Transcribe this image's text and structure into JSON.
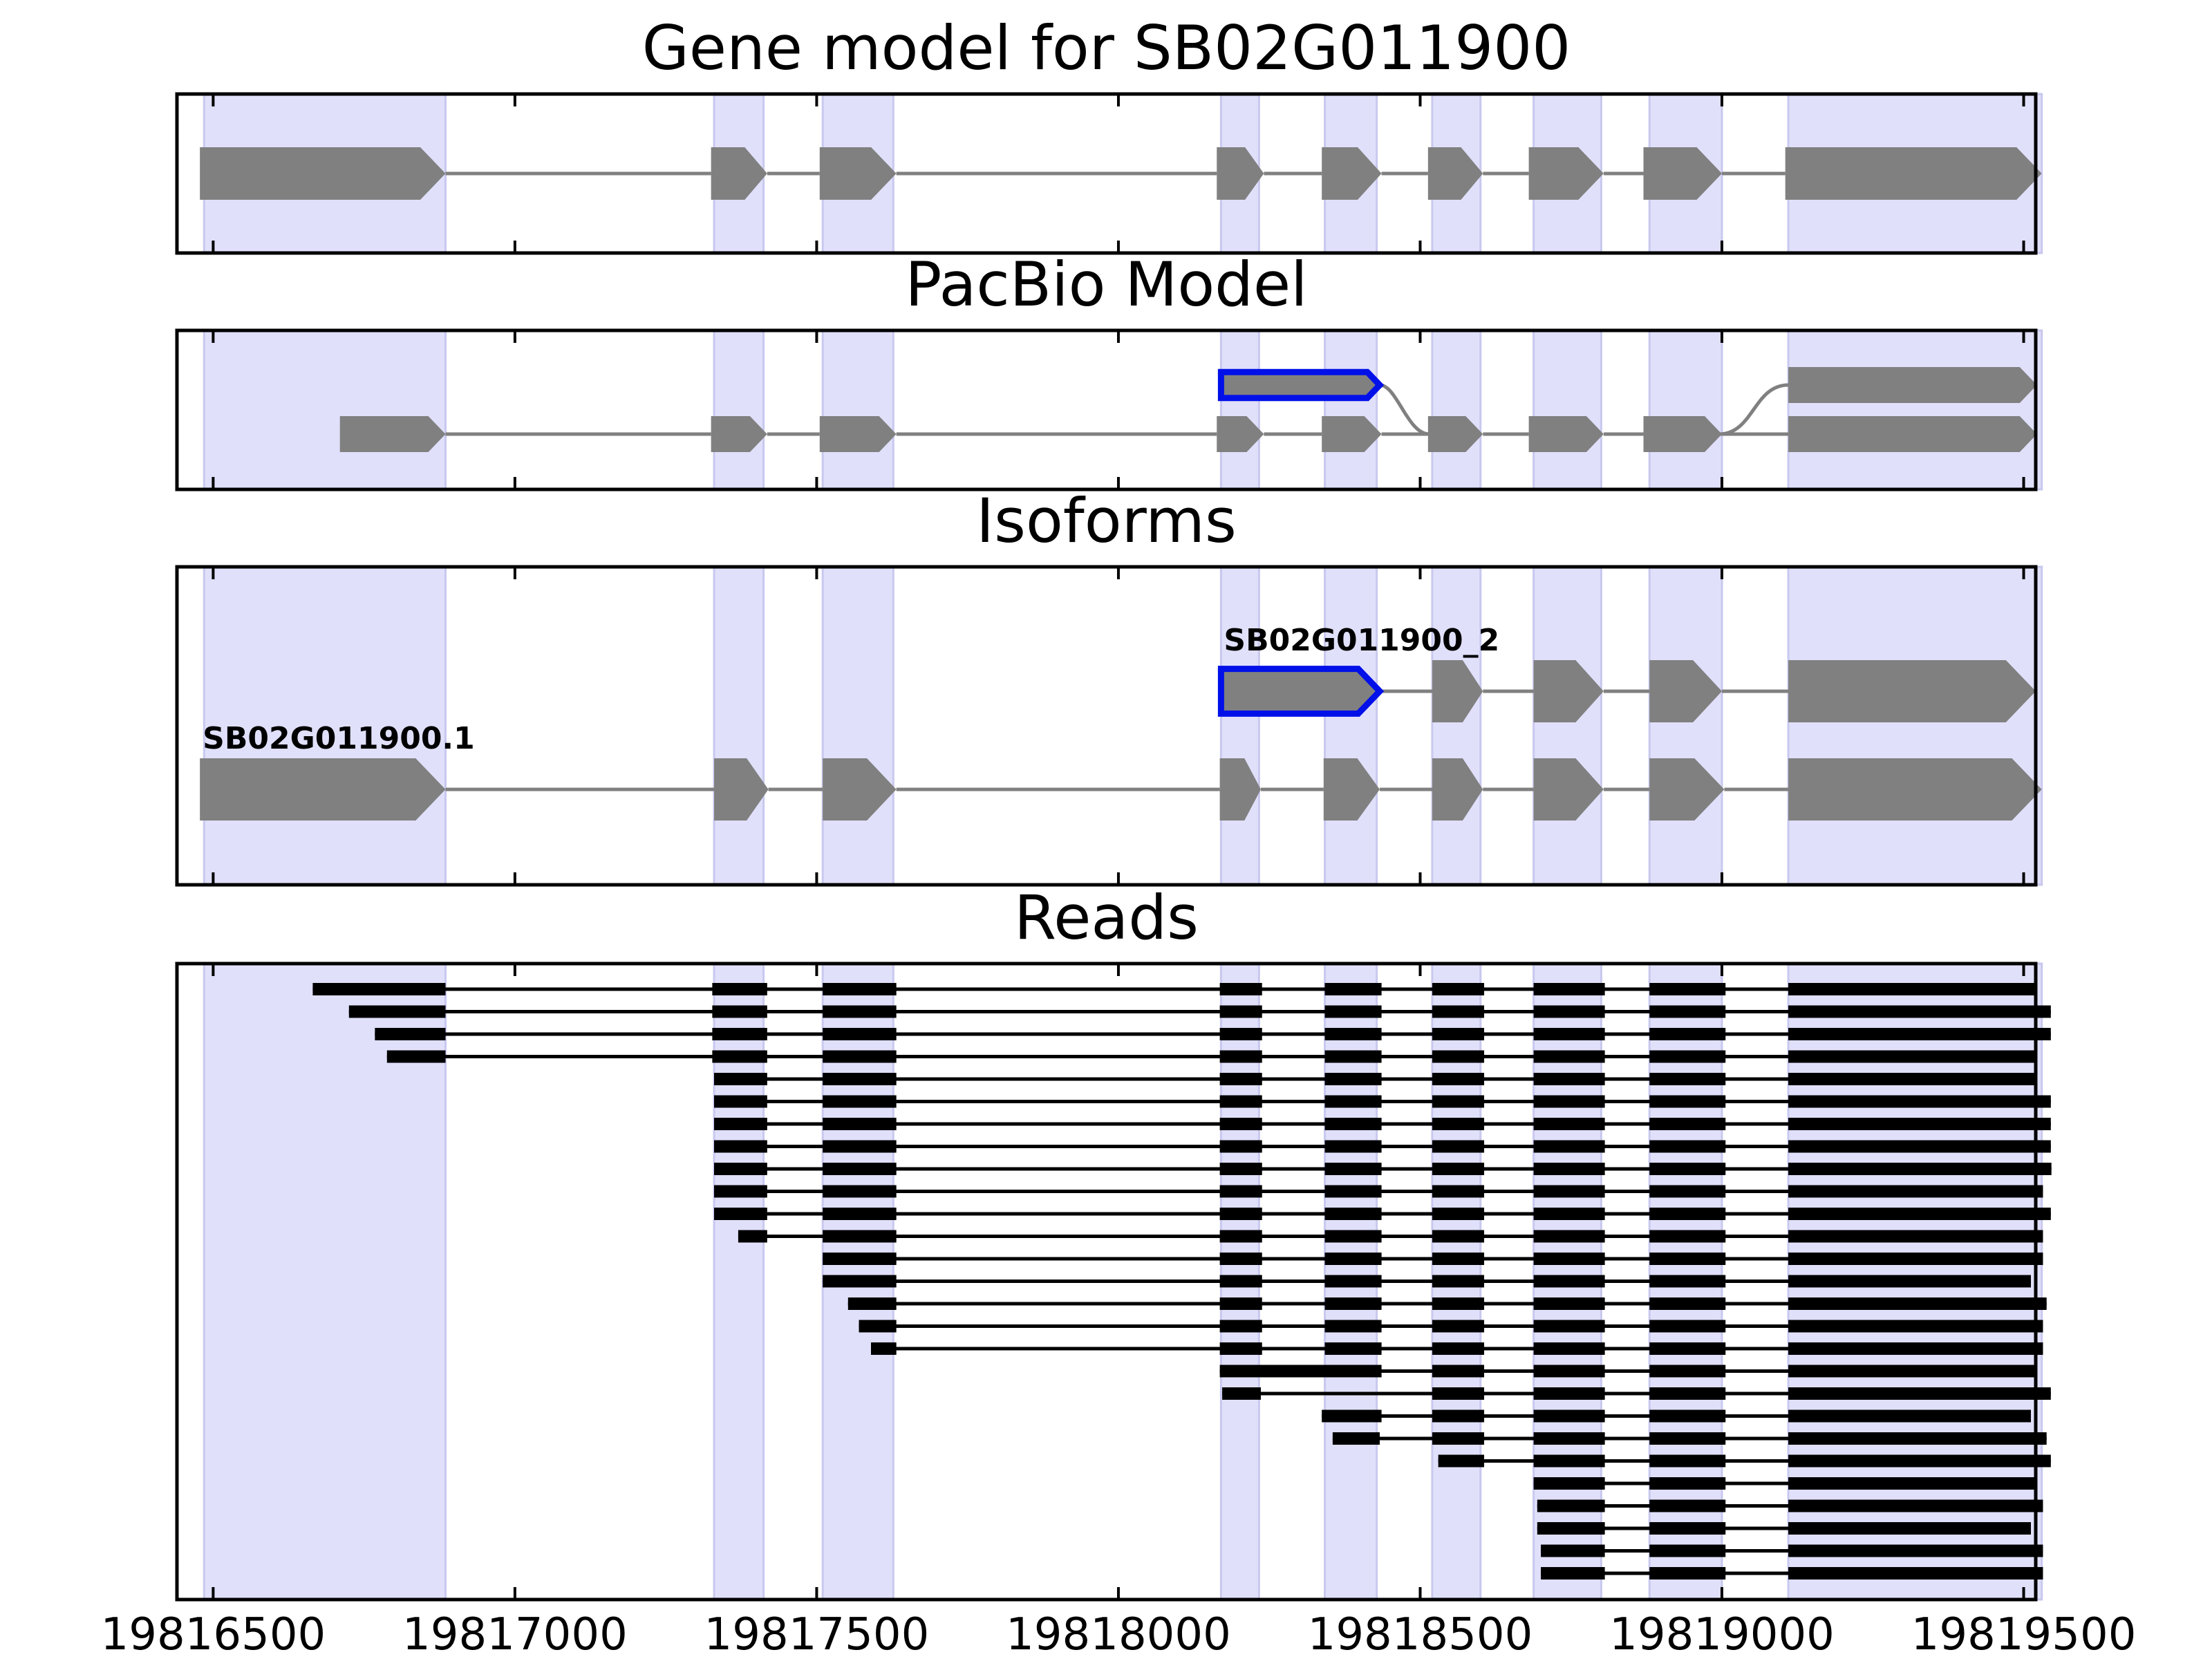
{
  "chart_data": {
    "type": "gene-structure",
    "x_range": [
      19816440,
      19819520
    ],
    "x_ticks": [
      19816500,
      19817000,
      19817500,
      19818000,
      19818500,
      19819000,
      19819500
    ],
    "x_tick_labels": [
      "19816500",
      "19817000",
      "19817500",
      "19818000",
      "19818500",
      "19819000",
      "19819500"
    ],
    "exon_bands": [
      [
        19816485,
        19816885
      ],
      [
        19817330,
        19817412
      ],
      [
        19817510,
        19817627
      ],
      [
        19818170,
        19818233
      ],
      [
        19818342,
        19818428
      ],
      [
        19818520,
        19818600
      ],
      [
        19818688,
        19818800
      ],
      [
        19818880,
        19819000
      ],
      [
        19819110,
        19819530
      ]
    ],
    "panels": [
      {
        "title": "Gene model for SB02G011900",
        "tracks": [
          {
            "exons": [
              [
                19816478,
                19816885
              ],
              [
                19817325,
                19817418
              ],
              [
                19817505,
                19817632
              ],
              [
                19818163,
                19818241
              ],
              [
                19818337,
                19818436
              ],
              [
                19818513,
                19818604
              ],
              [
                19818680,
                19818804
              ],
              [
                19818870,
                19819000
              ],
              [
                19819105,
                19819530
              ]
            ]
          }
        ]
      },
      {
        "title": "PacBio Model",
        "tracks": [
          {
            "level": 0,
            "exons": [
              [
                19818170,
                19818433
              ],
              [
                19819110,
                19819522
              ]
            ],
            "highlight_exon": 0,
            "curve_after": 0,
            "curve_before": 1
          },
          {
            "level": 1,
            "exons": [
              [
                19816710,
                19816885
              ],
              [
                19817325,
                19817418
              ],
              [
                19817505,
                19817632
              ],
              [
                19818163,
                19818241
              ],
              [
                19818337,
                19818436
              ],
              [
                19818513,
                19818604
              ],
              [
                19818680,
                19818804
              ],
              [
                19818870,
                19819000
              ],
              [
                19819110,
                19819522
              ]
            ]
          }
        ]
      },
      {
        "title": "Isoforms",
        "tracks": [
          {
            "level": 0,
            "label": "SB02G011900_2",
            "exons": [
              [
                19818170,
                19818433
              ],
              [
                19818520,
                19818604
              ],
              [
                19818688,
                19818804
              ],
              [
                19818880,
                19819000
              ],
              [
                19819110,
                19819520
              ]
            ],
            "highlight_exon": 0
          },
          {
            "level": 1,
            "label": "SB02G011900.1",
            "exons": [
              [
                19816478,
                19816885
              ],
              [
                19817330,
                19817420
              ],
              [
                19817510,
                19817632
              ],
              [
                19818168,
                19818236
              ],
              [
                19818340,
                19818433
              ],
              [
                19818520,
                19818604
              ],
              [
                19818688,
                19818804
              ],
              [
                19818880,
                19819004
              ],
              [
                19819110,
                19819530
              ]
            ]
          }
        ]
      },
      {
        "title": "Reads",
        "reads": [
          [
            [
              19816665,
              19816885
            ],
            [
              19817327,
              19817418
            ],
            [
              19817510,
              19817632
            ],
            [
              19818168,
              19818238
            ],
            [
              19818342,
              19818436
            ],
            [
              19818520,
              19818606
            ],
            [
              19818688,
              19818806
            ],
            [
              19818880,
              19819006
            ],
            [
              19819110,
              19819520
            ]
          ],
          [
            [
              19816725,
              19816885
            ],
            [
              19817327,
              19817418
            ],
            [
              19817510,
              19817632
            ],
            [
              19818168,
              19818238
            ],
            [
              19818342,
              19818436
            ],
            [
              19818520,
              19818606
            ],
            [
              19818688,
              19818806
            ],
            [
              19818880,
              19819006
            ],
            [
              19819110,
              19819545
            ]
          ],
          [
            [
              19816768,
              19816885
            ],
            [
              19817327,
              19817418
            ],
            [
              19817510,
              19817632
            ],
            [
              19818168,
              19818238
            ],
            [
              19818342,
              19818436
            ],
            [
              19818520,
              19818606
            ],
            [
              19818688,
              19818806
            ],
            [
              19818880,
              19819006
            ],
            [
              19819110,
              19819545
            ]
          ],
          [
            [
              19816788,
              19816885
            ],
            [
              19817327,
              19817418
            ],
            [
              19817510,
              19817632
            ],
            [
              19818168,
              19818238
            ],
            [
              19818342,
              19818436
            ],
            [
              19818520,
              19818606
            ],
            [
              19818688,
              19818806
            ],
            [
              19818880,
              19819006
            ],
            [
              19819110,
              19819520
            ]
          ],
          [
            [
              19817330,
              19817418
            ],
            [
              19817510,
              19817632
            ],
            [
              19818168,
              19818238
            ],
            [
              19818342,
              19818436
            ],
            [
              19818520,
              19818606
            ],
            [
              19818688,
              19818806
            ],
            [
              19818880,
              19819006
            ],
            [
              19819110,
              19819522
            ]
          ],
          [
            [
              19817330,
              19817418
            ],
            [
              19817510,
              19817632
            ],
            [
              19818168,
              19818238
            ],
            [
              19818342,
              19818436
            ],
            [
              19818520,
              19818606
            ],
            [
              19818688,
              19818806
            ],
            [
              19818880,
              19819006
            ],
            [
              19819110,
              19819545
            ]
          ],
          [
            [
              19817330,
              19817418
            ],
            [
              19817510,
              19817632
            ],
            [
              19818168,
              19818238
            ],
            [
              19818342,
              19818436
            ],
            [
              19818520,
              19818606
            ],
            [
              19818688,
              19818806
            ],
            [
              19818880,
              19819006
            ],
            [
              19819110,
              19819545
            ]
          ],
          [
            [
              19817330,
              19817418
            ],
            [
              19817510,
              19817632
            ],
            [
              19818168,
              19818238
            ],
            [
              19818342,
              19818436
            ],
            [
              19818520,
              19818606
            ],
            [
              19818688,
              19818806
            ],
            [
              19818880,
              19819006
            ],
            [
              19819110,
              19819545
            ]
          ],
          [
            [
              19817330,
              19817418
            ],
            [
              19817510,
              19817632
            ],
            [
              19818168,
              19818238
            ],
            [
              19818342,
              19818436
            ],
            [
              19818520,
              19818606
            ],
            [
              19818688,
              19818806
            ],
            [
              19818880,
              19819006
            ],
            [
              19819110,
              19819546
            ]
          ],
          [
            [
              19817330,
              19817418
            ],
            [
              19817510,
              19817632
            ],
            [
              19818168,
              19818238
            ],
            [
              19818342,
              19818436
            ],
            [
              19818520,
              19818606
            ],
            [
              19818688,
              19818806
            ],
            [
              19818880,
              19819006
            ],
            [
              19819110,
              19819532
            ]
          ],
          [
            [
              19817330,
              19817418
            ],
            [
              19817510,
              19817632
            ],
            [
              19818168,
              19818238
            ],
            [
              19818342,
              19818436
            ],
            [
              19818520,
              19818606
            ],
            [
              19818688,
              19818806
            ],
            [
              19818880,
              19819006
            ],
            [
              19819110,
              19819545
            ]
          ],
          [
            [
              19817370,
              19817418
            ],
            [
              19817510,
              19817632
            ],
            [
              19818168,
              19818238
            ],
            [
              19818342,
              19818436
            ],
            [
              19818520,
              19818606
            ],
            [
              19818688,
              19818806
            ],
            [
              19818880,
              19819006
            ],
            [
              19819110,
              19819532
            ]
          ],
          [
            [
              19817510,
              19817632
            ],
            [
              19818168,
              19818238
            ],
            [
              19818342,
              19818436
            ],
            [
              19818520,
              19818606
            ],
            [
              19818688,
              19818806
            ],
            [
              19818880,
              19819006
            ],
            [
              19819110,
              19819532
            ]
          ],
          [
            [
              19817510,
              19817632
            ],
            [
              19818168,
              19818238
            ],
            [
              19818342,
              19818436
            ],
            [
              19818520,
              19818606
            ],
            [
              19818688,
              19818806
            ],
            [
              19818880,
              19819006
            ],
            [
              19819110,
              19819512
            ]
          ],
          [
            [
              19817552,
              19817632
            ],
            [
              19818168,
              19818238
            ],
            [
              19818342,
              19818436
            ],
            [
              19818520,
              19818606
            ],
            [
              19818688,
              19818806
            ],
            [
              19818880,
              19819006
            ],
            [
              19819110,
              19819538
            ]
          ],
          [
            [
              19817570,
              19817632
            ],
            [
              19818168,
              19818238
            ],
            [
              19818342,
              19818436
            ],
            [
              19818520,
              19818606
            ],
            [
              19818688,
              19818806
            ],
            [
              19818880,
              19819006
            ],
            [
              19819110,
              19819532
            ]
          ],
          [
            [
              19817590,
              19817632
            ],
            [
              19818168,
              19818238
            ],
            [
              19818342,
              19818436
            ],
            [
              19818520,
              19818606
            ],
            [
              19818688,
              19818806
            ],
            [
              19818880,
              19819006
            ],
            [
              19819110,
              19819532
            ]
          ],
          [
            [
              19818168,
              19818436
            ],
            [
              19818520,
              19818606
            ],
            [
              19818688,
              19818806
            ],
            [
              19818880,
              19819006
            ],
            [
              19819110,
              19819522
            ]
          ],
          [
            [
              19818172,
              19818236
            ],
            [
              19818520,
              19818606
            ],
            [
              19818688,
              19818806
            ],
            [
              19818880,
              19819006
            ],
            [
              19819110,
              19819545
            ]
          ],
          [
            [
              19818337,
              19818436
            ],
            [
              19818520,
              19818606
            ],
            [
              19818688,
              19818806
            ],
            [
              19818880,
              19819006
            ],
            [
              19819110,
              19819512
            ]
          ],
          [
            [
              19818355,
              19818433
            ],
            [
              19818520,
              19818606
            ],
            [
              19818688,
              19818806
            ],
            [
              19818880,
              19819006
            ],
            [
              19819110,
              19819538
            ]
          ],
          [
            [
              19818530,
              19818606
            ],
            [
              19818688,
              19818806
            ],
            [
              19818880,
              19819006
            ],
            [
              19819110,
              19819545
            ]
          ],
          [
            [
              19818688,
              19818806
            ],
            [
              19818880,
              19819006
            ],
            [
              19819110,
              19819522
            ]
          ],
          [
            [
              19818694,
              19818806
            ],
            [
              19818880,
              19819006
            ],
            [
              19819110,
              19819532
            ]
          ],
          [
            [
              19818694,
              19818806
            ],
            [
              19818880,
              19819006
            ],
            [
              19819110,
              19819512
            ]
          ],
          [
            [
              19818700,
              19818806
            ],
            [
              19818880,
              19819006
            ],
            [
              19819110,
              19819532
            ]
          ],
          [
            [
              19818700,
              19818806
            ],
            [
              19818880,
              19819006
            ],
            [
              19819110,
              19819532
            ]
          ]
        ]
      }
    ]
  }
}
